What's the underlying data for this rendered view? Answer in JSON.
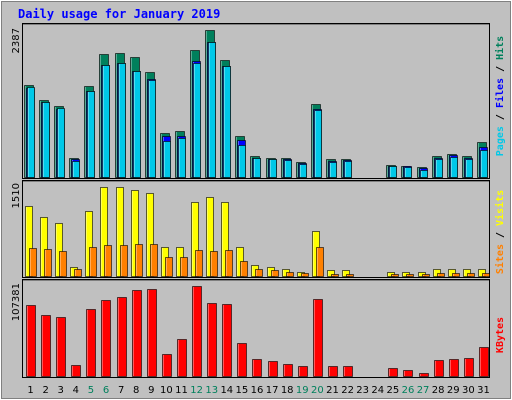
{
  "chart_data": {
    "type": "bar",
    "title": "Daily usage for January 2019",
    "categories": [
      "1",
      "2",
      "3",
      "4",
      "5",
      "6",
      "7",
      "8",
      "9",
      "10",
      "11",
      "12",
      "13",
      "14",
      "15",
      "16",
      "17",
      "18",
      "19",
      "20",
      "21",
      "22",
      "23",
      "24",
      "25",
      "26",
      "27",
      "28",
      "29",
      "30",
      "31"
    ],
    "weekend_days": [
      "5",
      "6",
      "12",
      "13",
      "19",
      "20",
      "26",
      "27"
    ],
    "colors": {
      "background": "#c0c0c0",
      "plot_background": "#c0c0c0",
      "title": "#0000ff",
      "hits": "#00805c",
      "files": "#0000ff",
      "pages": "#00c8e8",
      "visits": "#ffff00",
      "sites": "#ff8000",
      "kbytes": "#ff0000",
      "weekend_label": "#00805c"
    },
    "panels": [
      {
        "name": "hits-files-pages",
        "ymax_label": "2387",
        "legend": [
          {
            "text": "Pages",
            "color": "#00c8e8"
          },
          {
            "text": " / ",
            "color": "#000000"
          },
          {
            "text": "Files",
            "color": "#0000ff"
          },
          {
            "text": " / ",
            "color": "#000000"
          },
          {
            "text": "Hits",
            "color": "#00805c"
          }
        ],
        "series": [
          {
            "name": "Hits",
            "values": [
              1500,
              1260,
              1160,
              330,
              1480,
              2000,
              2020,
              1950,
              1710,
              720,
              760,
              2070,
              2387,
              1910,
              680,
              350,
              330,
              330,
              260,
              1200,
              300,
              300,
              0,
              0,
              210,
              200,
              170,
              350,
              390,
              360,
              580
            ]
          },
          {
            "name": "Files",
            "values": [
              1450,
              1220,
              1120,
              310,
              1400,
              1820,
              1850,
              1720,
              1590,
              680,
              680,
              1890,
              2190,
              1800,
              620,
              320,
              310,
              310,
              240,
              1120,
              280,
              290,
              0,
              0,
              200,
              190,
              160,
              330,
              370,
              330,
              500
            ]
          },
          {
            "name": "Pages",
            "values": [
              1460,
              1220,
              1130,
              280,
              1400,
              1820,
              1850,
              1720,
              1580,
              600,
              650,
              1860,
              2190,
              1800,
              530,
              320,
              300,
              290,
              220,
              1100,
              260,
              280,
              0,
              0,
              190,
              170,
              130,
              300,
              340,
              300,
              450
            ]
          }
        ]
      },
      {
        "name": "visits-sites",
        "ymax_label": "1510",
        "legend": [
          {
            "text": "Sites",
            "color": "#ff8000"
          },
          {
            "text": " / ",
            "color": "#000000"
          },
          {
            "text": "Visits",
            "color": "#ffff00"
          }
        ],
        "series": [
          {
            "name": "Visits",
            "values": [
              1190,
              1010,
              910,
              170,
              1110,
              1510,
              1510,
              1460,
              1410,
              510,
              500,
              1260,
              1350,
              1260,
              500,
              200,
              160,
              140,
              90,
              780,
              120,
              110,
              0,
              0,
              90,
              90,
              90,
              140,
              140,
              140,
              140
            ]
          },
          {
            "name": "Sites",
            "values": [
              490,
              470,
              440,
              140,
              500,
              540,
              540,
              550,
              560,
              330,
              330,
              460,
              440,
              460,
              270,
              130,
              120,
              90,
              70,
              500,
              50,
              50,
              0,
              0,
              50,
              50,
              50,
              60,
              60,
              60,
              60
            ]
          }
        ]
      },
      {
        "name": "kbytes",
        "ymax_label": "107381",
        "legend": [
          {
            "text": "KBytes",
            "color": "#ff0000"
          }
        ],
        "series": [
          {
            "name": "KBytes",
            "values": [
              82000,
              70000,
              68000,
              14000,
              77000,
              87000,
              91000,
              98000,
              100000,
              26000,
              43000,
              103000,
              84000,
              83000,
              38000,
              20000,
              18000,
              15000,
              12000,
              88000,
              13000,
              13000,
              0,
              0,
              10000,
              8000,
              5000,
              19000,
              20000,
              21000,
              34000
            ]
          }
        ]
      }
    ]
  }
}
